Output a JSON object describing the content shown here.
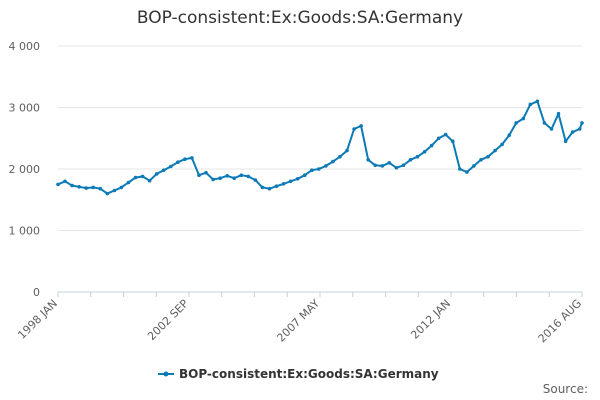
{
  "colors": {
    "series": "#0d7ab8",
    "grid": "#e6e6e6",
    "axis": "#c0d0e0"
  },
  "source_label": "Source:",
  "chart_data": {
    "type": "line",
    "title": "BOP-consistent:Ex:Goods:SA:Germany",
    "xlabel": "",
    "ylabel": "",
    "ylim": [
      0,
      4000
    ],
    "y_ticks": [
      0,
      1000,
      2000,
      3000,
      4000
    ],
    "y_tick_labels": [
      "0",
      "1 000",
      "2 000",
      "3 000",
      "4 000"
    ],
    "x_range": [
      "1998-01",
      "2016-08"
    ],
    "x_tick_labels": [
      "1998 JAN",
      "2002 SEP",
      "2007 MAY",
      "2012 JAN",
      "2016 AUG"
    ],
    "grid": true,
    "legend": "bottom-center",
    "series": [
      {
        "name": "BOP-consistent:Ex:Goods:SA:Germany",
        "points": [
          [
            "1998-01",
            1750
          ],
          [
            "1998-04",
            1800
          ],
          [
            "1998-07",
            1730
          ],
          [
            "1998-10",
            1710
          ],
          [
            "1999-01",
            1690
          ],
          [
            "1999-04",
            1700
          ],
          [
            "1999-07",
            1680
          ],
          [
            "1999-10",
            1600
          ],
          [
            "2000-01",
            1650
          ],
          [
            "2000-04",
            1700
          ],
          [
            "2000-07",
            1780
          ],
          [
            "2000-10",
            1860
          ],
          [
            "2001-01",
            1880
          ],
          [
            "2001-04",
            1810
          ],
          [
            "2001-07",
            1920
          ],
          [
            "2001-10",
            1980
          ],
          [
            "2002-01",
            2040
          ],
          [
            "2002-04",
            2110
          ],
          [
            "2002-07",
            2160
          ],
          [
            "2002-10",
            2180
          ],
          [
            "2003-01",
            1900
          ],
          [
            "2003-04",
            1940
          ],
          [
            "2003-07",
            1830
          ],
          [
            "2003-10",
            1850
          ],
          [
            "2004-01",
            1890
          ],
          [
            "2004-04",
            1850
          ],
          [
            "2004-07",
            1900
          ],
          [
            "2004-10",
            1880
          ],
          [
            "2005-01",
            1820
          ],
          [
            "2005-04",
            1700
          ],
          [
            "2005-07",
            1680
          ],
          [
            "2005-10",
            1720
          ],
          [
            "2006-01",
            1760
          ],
          [
            "2006-04",
            1800
          ],
          [
            "2006-07",
            1840
          ],
          [
            "2006-10",
            1900
          ],
          [
            "2007-01",
            1980
          ],
          [
            "2007-04",
            2000
          ],
          [
            "2007-07",
            2050
          ],
          [
            "2007-10",
            2120
          ],
          [
            "2008-01",
            2200
          ],
          [
            "2008-04",
            2300
          ],
          [
            "2008-07",
            2650
          ],
          [
            "2008-10",
            2700
          ],
          [
            "2009-01",
            2150
          ],
          [
            "2009-04",
            2060
          ],
          [
            "2009-07",
            2050
          ],
          [
            "2009-10",
            2100
          ],
          [
            "2010-01",
            2020
          ],
          [
            "2010-04",
            2060
          ],
          [
            "2010-07",
            2150
          ],
          [
            "2010-10",
            2200
          ],
          [
            "2011-01",
            2280
          ],
          [
            "2011-04",
            2380
          ],
          [
            "2011-07",
            2500
          ],
          [
            "2011-10",
            2560
          ],
          [
            "2012-01",
            2450
          ],
          [
            "2012-04",
            2000
          ],
          [
            "2012-07",
            1950
          ],
          [
            "2012-10",
            2050
          ],
          [
            "2013-01",
            2150
          ],
          [
            "2013-04",
            2200
          ],
          [
            "2013-07",
            2300
          ],
          [
            "2013-10",
            2400
          ],
          [
            "2014-01",
            2550
          ],
          [
            "2014-04",
            2750
          ],
          [
            "2014-07",
            2820
          ],
          [
            "2014-10",
            3050
          ],
          [
            "2015-01",
            3100
          ],
          [
            "2015-04",
            2750
          ],
          [
            "2015-07",
            2650
          ],
          [
            "2015-10",
            2900
          ],
          [
            "2016-01",
            2450
          ],
          [
            "2016-04",
            2600
          ],
          [
            "2016-07",
            2650
          ],
          [
            "2016-08",
            2750
          ]
        ]
      }
    ]
  }
}
